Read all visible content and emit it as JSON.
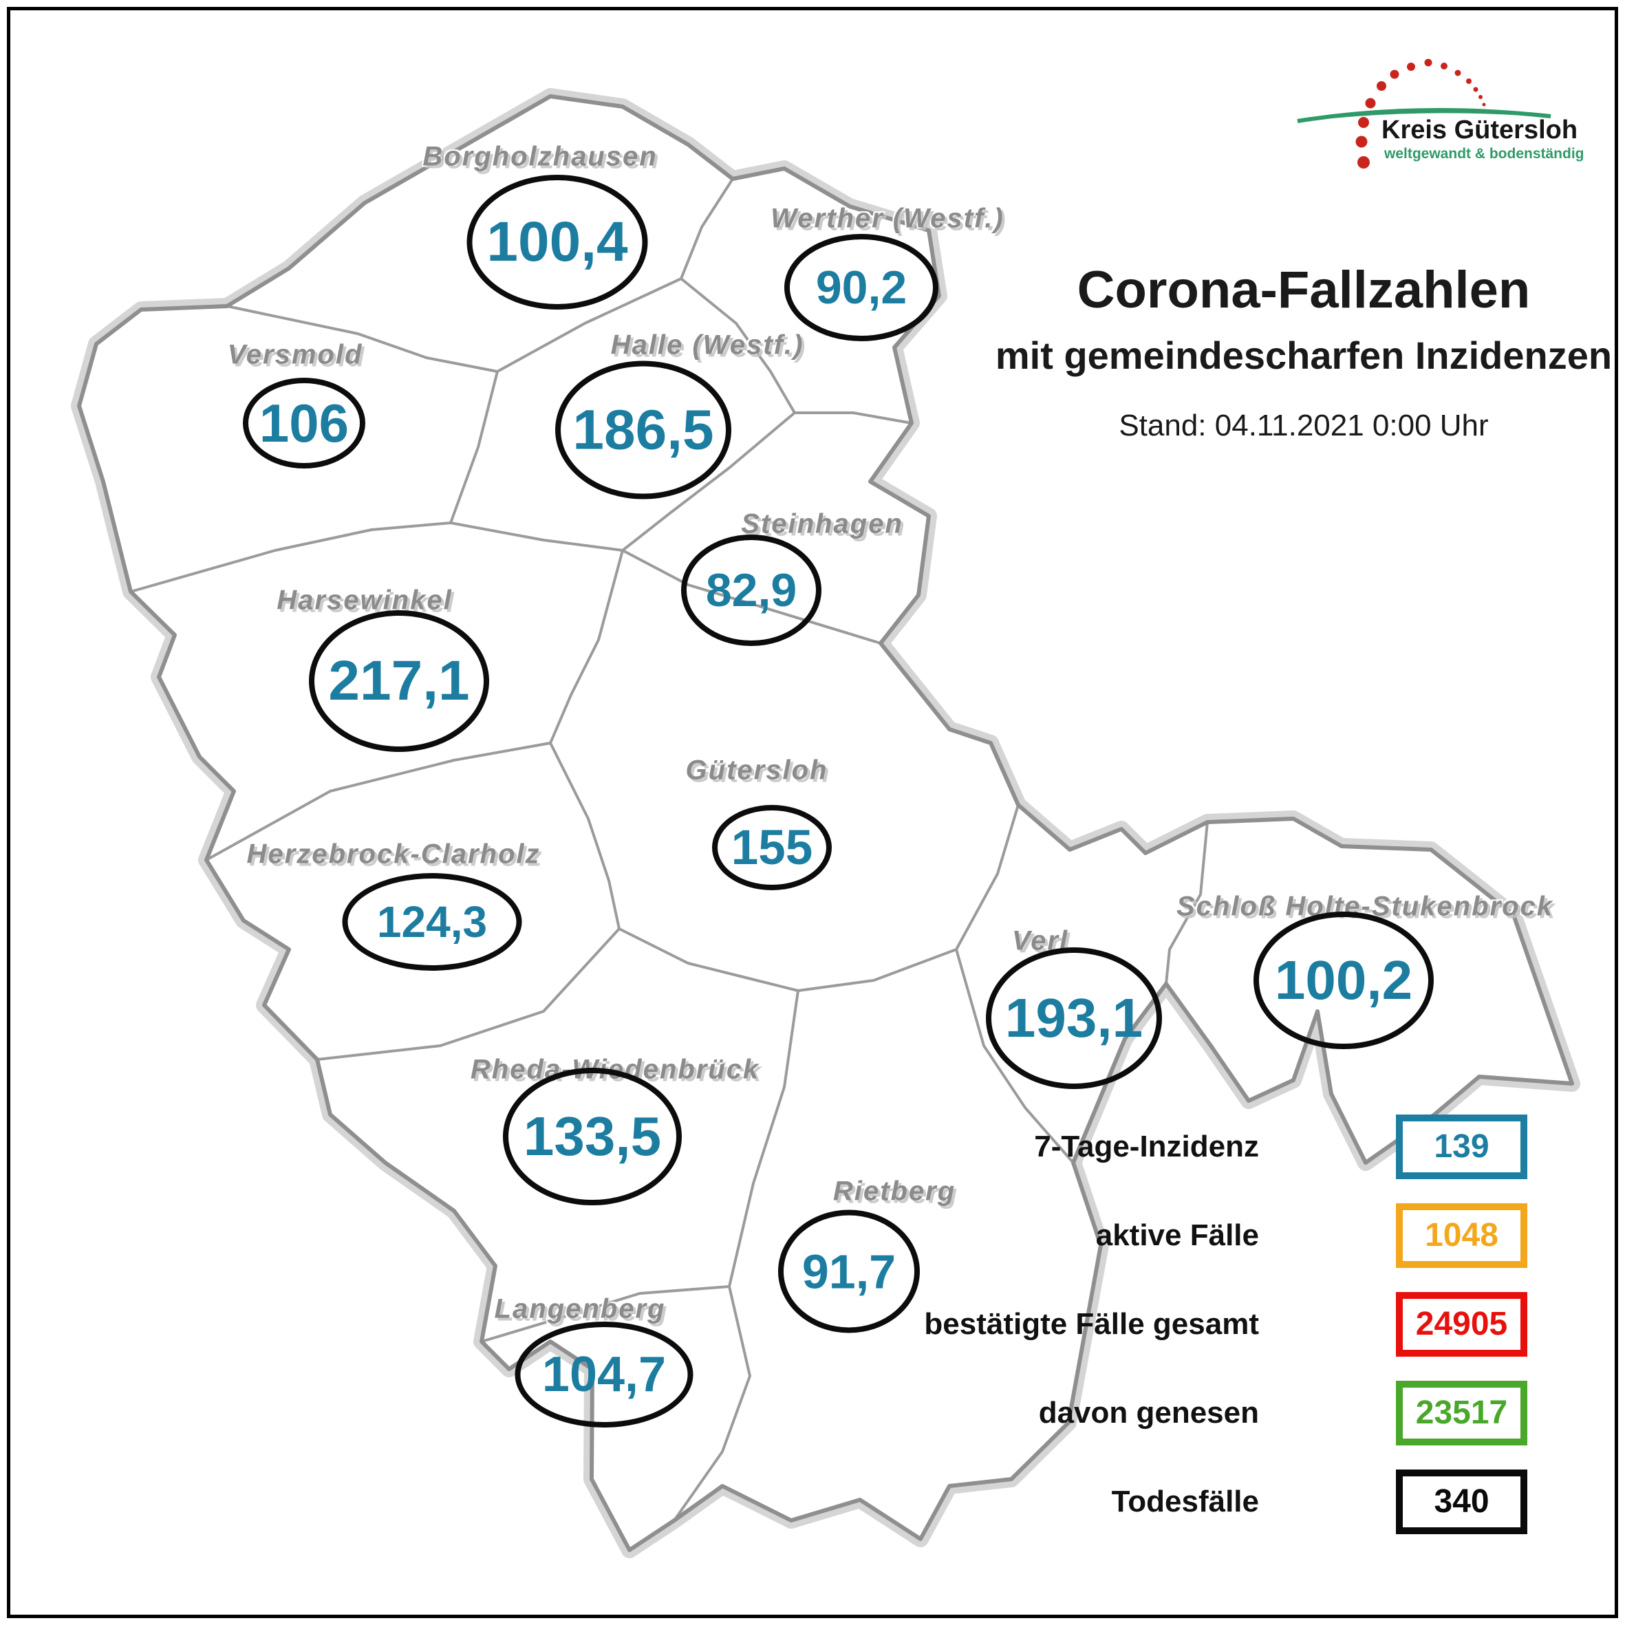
{
  "header": {
    "title": "Corona-Fallzahlen",
    "subtitle": "mit gemeindescharfen Inzidenzen",
    "date_line": "Stand: 04.11.2021 0:00 Uhr"
  },
  "logo": {
    "name": "Kreis Gütersloh",
    "tagline": "weltgewandt & bodenständig"
  },
  "map": {
    "municipalities": [
      {
        "name": "Borgholzhausen",
        "value": "100,4"
      },
      {
        "name": "Werther (Westf.)",
        "value": "90,2"
      },
      {
        "name": "Versmold",
        "value": "106"
      },
      {
        "name": "Halle (Westf.)",
        "value": "186,5"
      },
      {
        "name": "Steinhagen",
        "value": "82,9"
      },
      {
        "name": "Harsewinkel",
        "value": "217,1"
      },
      {
        "name": "Gütersloh",
        "value": "155"
      },
      {
        "name": "Herzebrock-Clarholz",
        "value": "124,3"
      },
      {
        "name": "Verl",
        "value": "193,1"
      },
      {
        "name": "Schloß Holte-Stukenbrock",
        "value": "100,2"
      },
      {
        "name": "Rheda-Wiedenbrück",
        "value": "133,5"
      },
      {
        "name": "Rietberg",
        "value": "91,7"
      },
      {
        "name": "Langenberg",
        "value": "104,7"
      }
    ]
  },
  "legend": {
    "items": [
      {
        "label": "7-Tage-Inzidenz",
        "value": "139",
        "color": "#1d7ea1"
      },
      {
        "label": "aktive Fälle",
        "value": "1048",
        "color": "#f3a71d"
      },
      {
        "label": "bestätigte Fälle gesamt",
        "value": "24905",
        "color": "#e8100c"
      },
      {
        "label": "davon genesen",
        "value": "23517",
        "color": "#49a72a"
      },
      {
        "label": "Todesfälle",
        "value": "340",
        "color": "#0a0a0a"
      }
    ]
  },
  "colors": {
    "incidence_text": "#1c7da1",
    "municipality_name_text": "#8b8b8b",
    "district_boundary": "#8f8f8f",
    "inner_boundary": "#9b9b9b",
    "boundary_halo": "#d5d5d5",
    "logo_red": "#c9251d",
    "logo_green": "#2f9a68"
  }
}
